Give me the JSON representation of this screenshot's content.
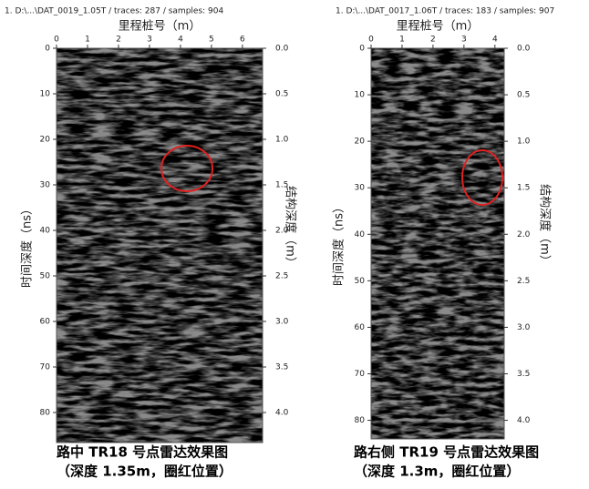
{
  "chart_data": [
    {
      "type": "radargram",
      "header": "1. D:\\...\\DAT_0019_1.05T / traces: 287 / samples: 904",
      "xlabel": "里程桩号（m）",
      "ylabel": "时间深度（ns）",
      "y2label": "结构深度（m）",
      "xlim": [
        0,
        6.65
      ],
      "xticks": [
        0,
        1,
        2,
        3,
        4,
        5,
        6
      ],
      "ylim": [
        0,
        86.6
      ],
      "yticks": [
        0,
        10,
        20,
        30,
        40,
        50,
        60,
        70,
        80
      ],
      "y2lim": [
        0,
        4.33
      ],
      "y2ticks": [
        {
          "value": 0,
          "label": "0.0"
        },
        0.5,
        {
          "value": 1,
          "label": "1.0"
        },
        1.5,
        {
          "value": 2,
          "label": "2.0"
        },
        2.5,
        {
          "value": 3,
          "label": "3.0"
        },
        3.5,
        {
          "value": 4,
          "label": "4.0"
        }
      ],
      "caption": [
        "路中 TR18 号点雷达效果图",
        "（深度 1.35m，圈红位置）"
      ]
    },
    {
      "type": "radargram",
      "header": "1. D:\\...\\DAT_0017_1.06T / traces: 183 / samples: 907",
      "xlabel": "里程桩号（m）",
      "ylabel": "时间深度（ns）",
      "y2label": "结构深度（m）",
      "xlim": [
        0,
        4.3
      ],
      "xticks": [
        0,
        1,
        2,
        3,
        4
      ],
      "ylim": [
        0,
        84
      ],
      "yticks": [
        0,
        10,
        20,
        30,
        40,
        50,
        60,
        70,
        80
      ],
      "y2lim": [
        0,
        4.2
      ],
      "y2ticks": [
        {
          "value": 0,
          "label": "0.0"
        },
        0.5,
        {
          "value": 1,
          "label": "1.0"
        },
        1.5,
        {
          "value": 2,
          "label": "2.0"
        },
        2.5,
        {
          "value": 3,
          "label": "3.0"
        },
        3.5,
        {
          "value": 4,
          "label": "4.0"
        }
      ],
      "caption": [
        "路右侧 TR19 号点雷达效果图",
        "（深度 1.3m，圈红位置）"
      ]
    }
  ]
}
